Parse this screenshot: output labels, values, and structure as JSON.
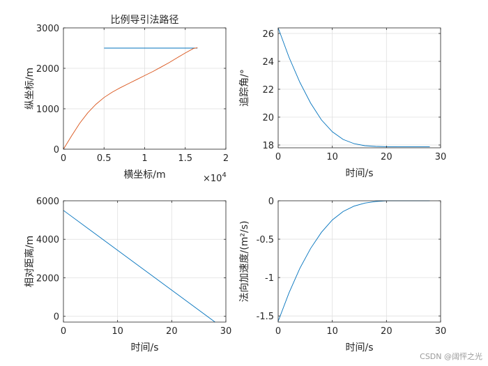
{
  "chart_data": [
    {
      "id": "path",
      "type": "line",
      "title": "比例导引法路径",
      "xlabel": "横坐标/m",
      "ylabel": "纵坐标/m",
      "xlim": [
        0,
        20000
      ],
      "ylim": [
        0,
        3000
      ],
      "xticks": [
        0,
        5000,
        10000,
        15000,
        20000
      ],
      "xtick_labels": [
        "0",
        "0.5",
        "1",
        "1.5",
        "2"
      ],
      "xexponent": {
        "base": "×10",
        "power": "4"
      },
      "yticks": [
        0,
        1000,
        2000,
        3000
      ],
      "ytick_labels": [
        "0",
        "1000",
        "2000",
        "3000"
      ],
      "grid": true,
      "series": [
        {
          "name": "target",
          "color": "#0072BD",
          "x": [
            5000,
            16500
          ],
          "y": [
            2500,
            2500
          ]
        },
        {
          "name": "missile",
          "color": "#D95319",
          "x": [
            0,
            1000,
            2000,
            3000,
            4000,
            5000,
            6000,
            7000,
            8000,
            9000,
            10000,
            11000,
            12000,
            13000,
            14000,
            15000,
            16000,
            16500
          ],
          "y": [
            0,
            330,
            640,
            900,
            1110,
            1280,
            1410,
            1520,
            1620,
            1720,
            1820,
            1920,
            2030,
            2140,
            2260,
            2380,
            2490,
            2510
          ]
        }
      ]
    },
    {
      "id": "angle",
      "type": "line",
      "title": "",
      "xlabel": "时间/s",
      "ylabel": "追踪角/°",
      "xlim": [
        0,
        30
      ],
      "ylim": [
        17.8,
        26.4
      ],
      "xticks": [
        0,
        10,
        20,
        30
      ],
      "xtick_labels": [
        "0",
        "10",
        "20",
        "30"
      ],
      "yticks": [
        18,
        20,
        22,
        24,
        26
      ],
      "ytick_labels": [
        "18",
        "20",
        "22",
        "24",
        "26"
      ],
      "grid": true,
      "series": [
        {
          "name": "angle",
          "color": "#0072BD",
          "x": [
            0,
            2,
            4,
            6,
            8,
            10,
            12,
            14,
            16,
            18,
            20,
            22,
            24,
            26,
            28
          ],
          "y": [
            26.4,
            24.3,
            22.5,
            21.0,
            19.8,
            18.95,
            18.4,
            18.1,
            17.95,
            17.9,
            17.88,
            17.87,
            17.87,
            17.87,
            17.87
          ]
        }
      ]
    },
    {
      "id": "distance",
      "type": "line",
      "title": "",
      "xlabel": "时间/s",
      "ylabel": "相对距离/m",
      "xlim": [
        0,
        30
      ],
      "ylim": [
        -300,
        6000
      ],
      "xticks": [
        0,
        10,
        20,
        30
      ],
      "xtick_labels": [
        "0",
        "10",
        "20",
        "30"
      ],
      "yticks": [
        0,
        2000,
        4000,
        6000
      ],
      "ytick_labels": [
        "0",
        "2000",
        "4000",
        "6000"
      ],
      "grid": true,
      "series": [
        {
          "name": "distance",
          "color": "#0072BD",
          "x": [
            0,
            28
          ],
          "y": [
            5500,
            -300
          ]
        }
      ]
    },
    {
      "id": "accel",
      "type": "line",
      "title": "",
      "xlabel": "时间/s",
      "ylabel": "法向加速度/(m²/s)",
      "xlim": [
        0,
        30
      ],
      "ylim": [
        -1.58,
        0
      ],
      "xticks": [
        0,
        10,
        20,
        30
      ],
      "xtick_labels": [
        "0",
        "10",
        "20",
        "30"
      ],
      "yticks": [
        -1.5,
        -1,
        -0.5,
        0
      ],
      "ytick_labels": [
        "-1.5",
        "-1",
        "-0.5",
        "0"
      ],
      "grid": true,
      "series": [
        {
          "name": "accel",
          "color": "#0072BD",
          "x": [
            0,
            2,
            4,
            6,
            8,
            10,
            12,
            14,
            16,
            18,
            20,
            22,
            24,
            26,
            28
          ],
          "y": [
            -1.57,
            -1.2,
            -0.88,
            -0.62,
            -0.41,
            -0.25,
            -0.14,
            -0.07,
            -0.03,
            -0.01,
            0,
            0,
            0,
            0,
            0
          ]
        }
      ]
    }
  ],
  "watermark": "CSDN @阔怦之光"
}
